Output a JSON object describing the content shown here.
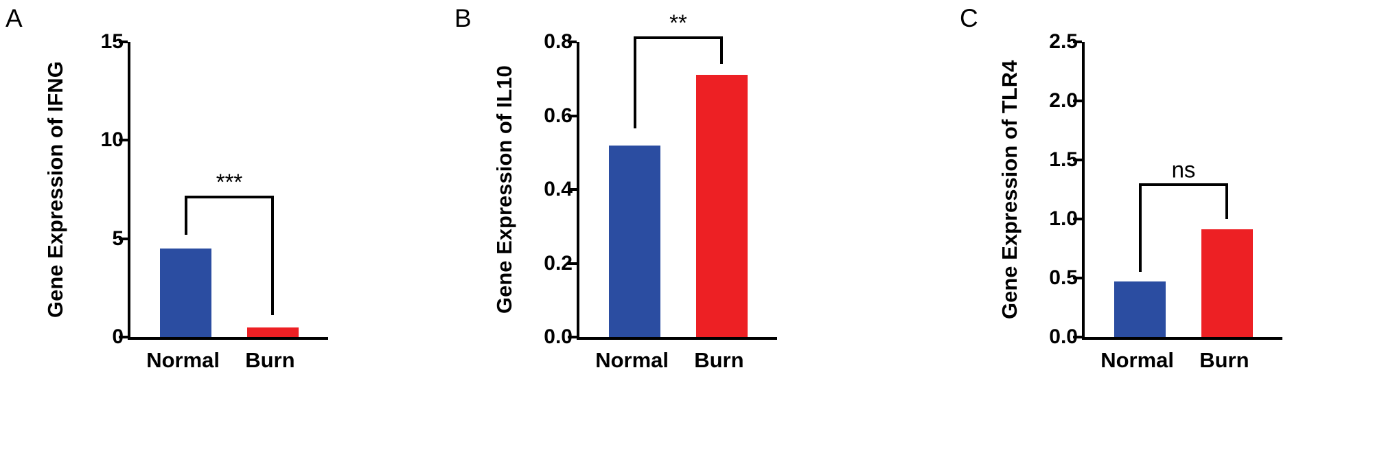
{
  "figure": {
    "background": "#ffffff",
    "axis_color": "#000000"
  },
  "palette": {
    "normal_bar": "#2b4da1",
    "burn_bar": "#ed2024"
  },
  "chart_data": [
    {
      "type": "bar",
      "panel": "A",
      "ylabel": "Gene Expression of IFNG",
      "xlabel": "",
      "categories": [
        "Normal",
        "Burn"
      ],
      "values": [
        4.5,
        0.5
      ],
      "bar_colors": [
        "#2b4da1",
        "#ed2024"
      ],
      "ylim": [
        0,
        15
      ],
      "yticks": [
        0,
        5,
        10,
        15
      ],
      "ytick_labels": [
        "0",
        "5",
        "10",
        "15"
      ],
      "grid": false,
      "legend": "none",
      "significance": {
        "label": "***",
        "top": 7.2,
        "left_end": 5.2,
        "right_end": 1.1
      }
    },
    {
      "type": "bar",
      "panel": "B",
      "ylabel": "Gene Expression of IL10",
      "xlabel": "",
      "categories": [
        "Normal",
        "Burn"
      ],
      "values": [
        0.52,
        0.71
      ],
      "bar_colors": [
        "#2b4da1",
        "#ed2024"
      ],
      "ylim": [
        0,
        0.8
      ],
      "yticks": [
        0.0,
        0.2,
        0.4,
        0.6,
        0.8
      ],
      "ytick_labels": [
        "0.0",
        "0.2",
        "0.4",
        "0.6",
        "0.8"
      ],
      "grid": false,
      "legend": "none",
      "significance": {
        "label": "**",
        "top": 0.815,
        "left_end": 0.565,
        "right_end": 0.74
      }
    },
    {
      "type": "bar",
      "panel": "C",
      "ylabel": "Gene Expression of TLR4",
      "xlabel": "",
      "categories": [
        "Normal",
        "Burn"
      ],
      "values": [
        0.47,
        0.91
      ],
      "bar_colors": [
        "#2b4da1",
        "#ed2024"
      ],
      "ylim": [
        0,
        2.5
      ],
      "yticks": [
        0.0,
        0.5,
        1.0,
        1.5,
        2.0,
        2.5
      ],
      "ytick_labels": [
        "0.0",
        "0.5",
        "1.0",
        "1.5",
        "2.0",
        "2.5"
      ],
      "grid": false,
      "legend": "none",
      "significance": {
        "label": "ns",
        "top": 1.3,
        "left_end": 0.55,
        "right_end": 1.0
      }
    }
  ]
}
